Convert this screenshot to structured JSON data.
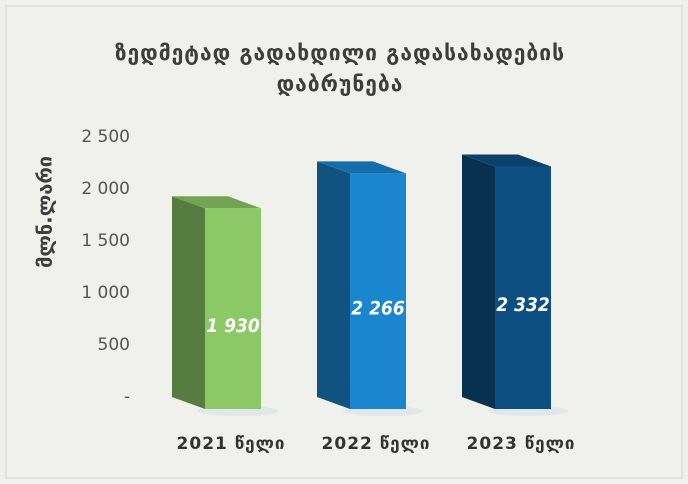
{
  "chart_data": {
    "type": "bar3d",
    "title": "ზედმეტად გადახდილი გადასახადების დაბრუნება",
    "y_label": "მლნ.ლარი",
    "categories": [
      "2021 წელი",
      "2022 წელი",
      "2023 წელი"
    ],
    "values": [
      1930,
      2266,
      2332
    ],
    "value_labels": [
      "1 930",
      "2 266",
      "2 332"
    ],
    "colors": [
      "#8cc866",
      "#1a86cf",
      "#0d4f80"
    ],
    "ylim": [
      0,
      2500
    ],
    "yticks": [
      {
        "value": 0,
        "label": "-"
      },
      500,
      {
        "value": 1000,
        "label": "1 000"
      },
      {
        "value": 1500,
        "label": "1 500"
      },
      {
        "value": 2000,
        "label": "2 000"
      },
      {
        "value": 2500,
        "label": "2 500"
      }
    ],
    "grid": false
  }
}
